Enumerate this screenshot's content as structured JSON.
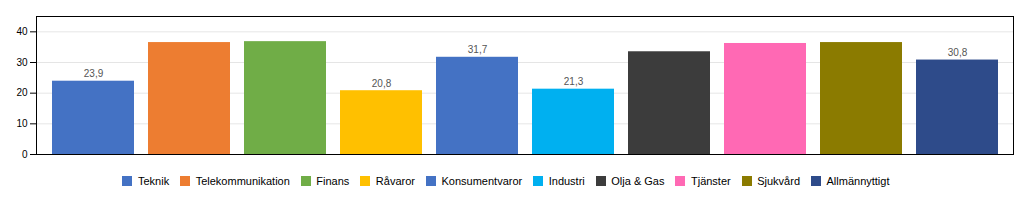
{
  "chart_data": {
    "type": "bar",
    "categories": [
      "Teknik",
      "Telekommunikation",
      "Finans",
      "Råvaror",
      "Konsumentvaror",
      "Industri",
      "Olja & Gas",
      "Tjänster",
      "Sjukvård",
      "Allmännyttigt"
    ],
    "values": [
      23.9,
      36.5,
      36.8,
      20.8,
      31.7,
      21.3,
      33.5,
      36.2,
      36.5,
      30.8
    ],
    "value_labels": [
      "23,9",
      null,
      null,
      "20,8",
      "31,7",
      "21,3",
      null,
      null,
      null,
      "30,8"
    ],
    "data_labels": true,
    "colors": [
      "#4472C4",
      "#ED7D31",
      "#70AD47",
      "#FFC000",
      "#4472C4",
      "#00B0F0",
      "#3C3C3C",
      "#FF69B4",
      "#8B7B00",
      "#2E4B8A"
    ],
    "ylim": [
      0,
      45
    ],
    "yticks": [
      0,
      10,
      20,
      30,
      40
    ],
    "grid": true,
    "legend": "bottom",
    "tick_labels": "y"
  }
}
